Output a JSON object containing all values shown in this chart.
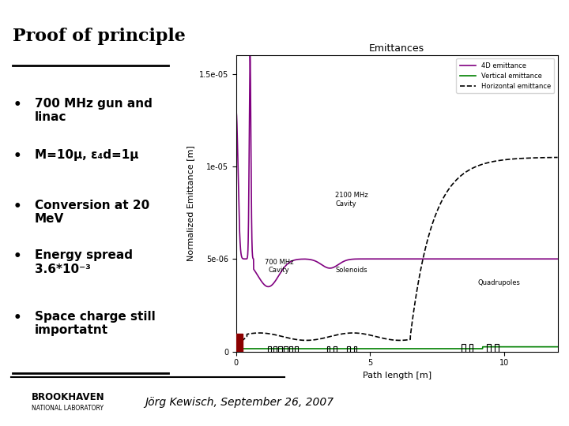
{
  "title": "Proof of principle",
  "background_color": "#ffffff",
  "bullet_points": [
    "700 MHz gun and\nlinac",
    "M=10μ, ε₄d=1μ",
    "Conversion at 20\nMeV",
    "Energy spread\n3.6*10⁻³",
    "Space charge still\nimportatnt"
  ],
  "plot_title": "Emittances",
  "xlabel": "Path length [m]",
  "ylabel": "Normalized Emittance [m]",
  "xlim": [
    0,
    12
  ],
  "ylim": [
    0,
    1.6e-05
  ],
  "yticks": [
    0,
    5e-06,
    1e-05,
    1.5e-05
  ],
  "ytick_labels": [
    "0",
    "5e-06",
    "1e-05",
    "1.5e-05"
  ],
  "xticks": [
    0,
    5,
    10
  ],
  "footer_center": "Jörg Kewisch, September 26, 2007",
  "line_color_4d": "#800080",
  "line_color_vert": "#008000",
  "line_color_horiz": "#000000",
  "legend_labels": [
    "4D emittance",
    "Vertical emittance",
    "Horizontal emittance"
  ]
}
